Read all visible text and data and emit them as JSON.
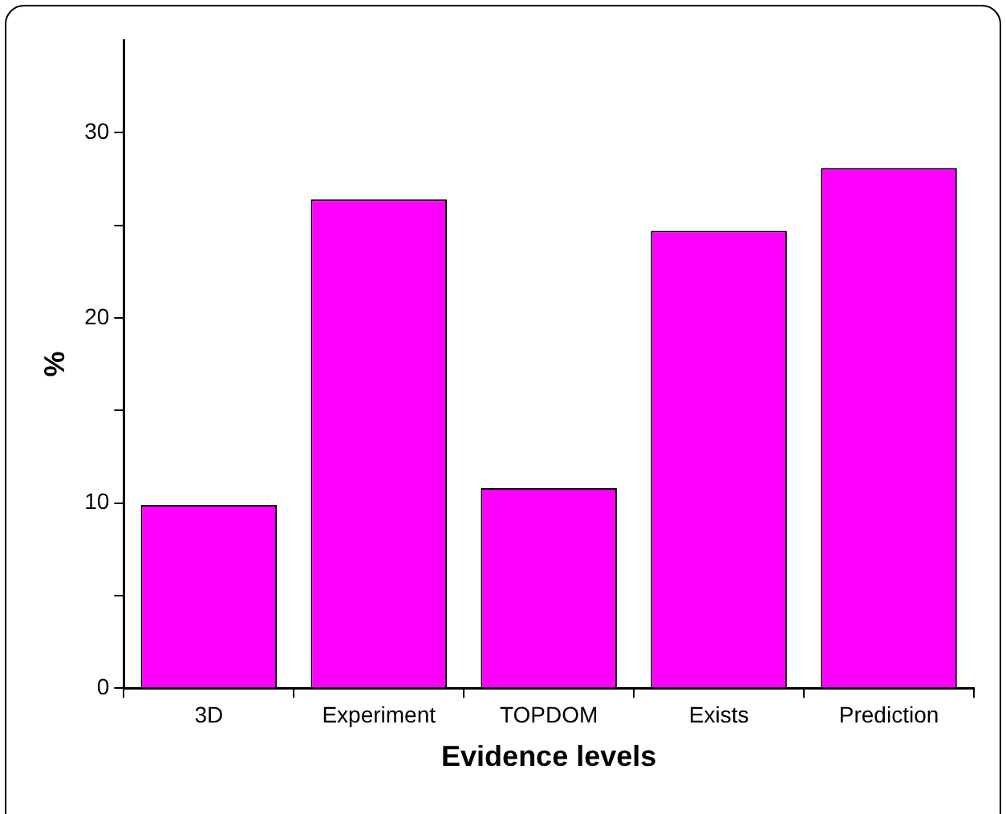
{
  "chart_data": {
    "type": "bar",
    "xlabel": "Evidence levels",
    "ylabel": "%",
    "categories": [
      "3D",
      "Experiment",
      "TOPDOM",
      "Exists",
      "Prediction"
    ],
    "values": [
      9.9,
      26.4,
      10.8,
      24.7,
      28.1
    ],
    "color": "#ff00ff",
    "ylim": [
      0,
      35
    ],
    "yticks": [
      0,
      {
        "value": 5,
        "label": null
      },
      10,
      {
        "value": 15,
        "label": null
      },
      20,
      {
        "value": 25,
        "label": null
      },
      30
    ],
    "grid": false,
    "legend": false
  }
}
